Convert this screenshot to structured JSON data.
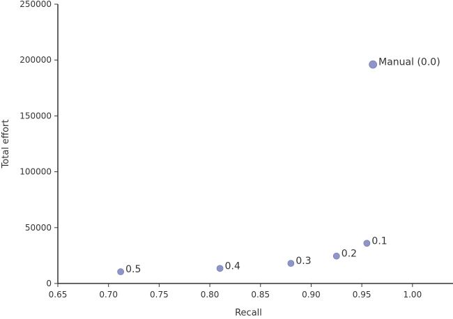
{
  "chart_data": {
    "type": "scatter",
    "title": "",
    "xlabel": "Recall",
    "ylabel": "Total effort",
    "xlim": [
      0.65,
      1.04
    ],
    "ylim": [
      0,
      250000
    ],
    "x_ticks": [
      "0.65",
      "0.70",
      "0.75",
      "0.80",
      "0.85",
      "0.90",
      "0.95",
      "1.00"
    ],
    "y_ticks": [
      "0",
      "50000",
      "100000",
      "150000",
      "200000",
      "250000"
    ],
    "grid": false,
    "legend": "none",
    "colors": {
      "marker": "#8f95c7",
      "marker_edge": "#7a80b8",
      "axis": "#333333",
      "text": "#333333"
    },
    "points": [
      {
        "label": "Manual (0.0)",
        "x": 0.961,
        "y": 196000,
        "size": "large"
      },
      {
        "label": "0.1",
        "x": 0.955,
        "y": 36000,
        "size": "small"
      },
      {
        "label": "0.2",
        "x": 0.925,
        "y": 24500,
        "size": "small"
      },
      {
        "label": "0.3",
        "x": 0.88,
        "y": 18000,
        "size": "small"
      },
      {
        "label": "0.4",
        "x": 0.81,
        "y": 13500,
        "size": "small"
      },
      {
        "label": "0.5",
        "x": 0.712,
        "y": 10500,
        "size": "small"
      }
    ]
  }
}
